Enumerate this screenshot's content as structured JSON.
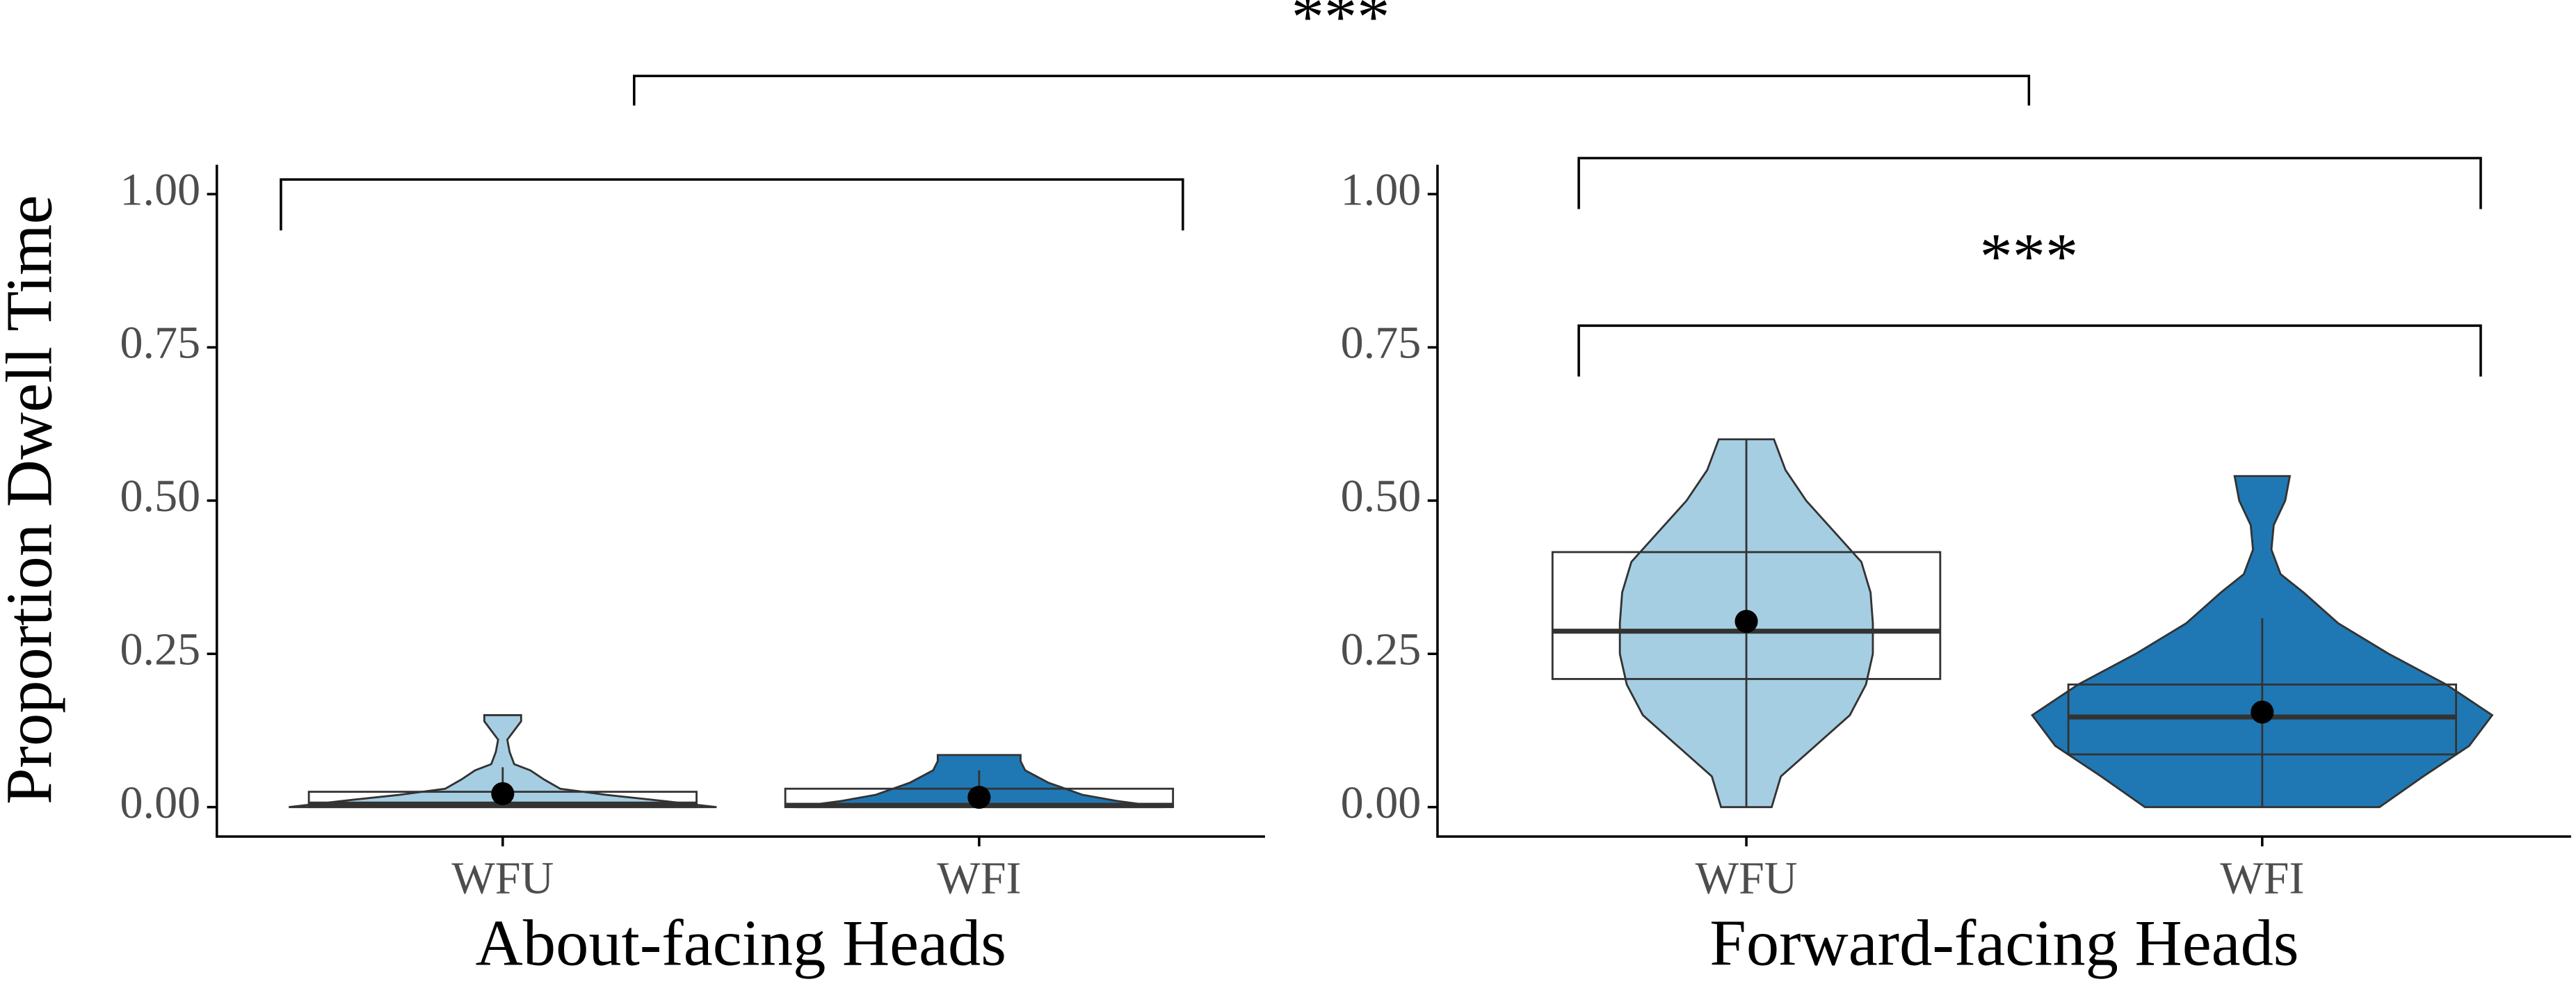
{
  "figure_annotation": "***",
  "y_axis_label": "Proportion Dwell Time",
  "chart_data": [
    {
      "type": "violin",
      "title": "About-facing Heads",
      "categories": [
        "WFU",
        "WFI"
      ],
      "colors": [
        "#a6cee3",
        "#1f78b4"
      ],
      "ylim": [
        -0.048,
        1.048
      ],
      "yticks": [
        {
          "value": 0,
          "label": "0.00"
        },
        {
          "value": 0.25,
          "label": "0.25"
        },
        {
          "value": 0.5,
          "label": "0.50"
        },
        {
          "value": 0.75,
          "label": "0.75"
        },
        {
          "value": 1,
          "label": "1.00"
        }
      ],
      "boxes": [
        {
          "q1": 0,
          "median": 0.005,
          "q3": 0.025,
          "whisker_low": 0,
          "whisker_high": 0.065,
          "mean": 0.022,
          "density": {
            "y": [
              0,
              0.01,
              0.02,
              0.03,
              0.045,
              0.06,
              0.07,
              0.09,
              0.11,
              0.125,
              0.14,
              0.15
            ],
            "d": [
              0.93,
              0.7,
              0.45,
              0.25,
              0.18,
              0.12,
              0.05,
              0.03,
              0.02,
              0.05,
              0.08,
              0.08
            ]
          }
        },
        {
          "q1": 0,
          "median": 0.003,
          "q3": 0.03,
          "whisker_low": 0,
          "whisker_high": 0.06,
          "mean": 0.016,
          "density": {
            "y": [
              0,
              0.01,
              0.02,
              0.04,
              0.06,
              0.075,
              0.085
            ],
            "d": [
              0.8,
              0.6,
              0.45,
              0.3,
              0.2,
              0.18,
              0.18
            ]
          }
        }
      ],
      "annotations": []
    },
    {
      "type": "violin",
      "title": "Forward-facing Heads",
      "categories": [
        "WFU",
        "WFI"
      ],
      "colors": [
        "#a6cee3",
        "#1f78b4"
      ],
      "ylim": [
        -0.048,
        1.048
      ],
      "yticks": [
        {
          "value": 0,
          "label": "0.00"
        },
        {
          "value": 0.25,
          "label": "0.25"
        },
        {
          "value": 0.5,
          "label": "0.50"
        },
        {
          "value": 0.75,
          "label": "0.75"
        },
        {
          "value": 1,
          "label": "1.00"
        }
      ],
      "boxes": [
        {
          "q1": 0.209,
          "median": 0.287,
          "q3": 0.416,
          "whisker_low": 0,
          "whisker_high": 0.6,
          "mean": 0.303,
          "density": {
            "y": [
              0,
              0.05,
              0.1,
              0.15,
              0.2,
              0.25,
              0.3,
              0.35,
              0.4,
              0.45,
              0.5,
              0.55,
              0.6
            ],
            "d": [
              0.11,
              0.15,
              0.3,
              0.45,
              0.52,
              0.55,
              0.55,
              0.54,
              0.5,
              0.38,
              0.26,
              0.17,
              0.12
            ]
          }
        },
        {
          "q1": 0.086,
          "median": 0.147,
          "q3": 0.2,
          "whisker_low": 0,
          "whisker_high": 0.308,
          "mean": 0.155,
          "density": {
            "y": [
              0,
              0.05,
              0.1,
              0.15,
              0.2,
              0.25,
              0.3,
              0.35,
              0.38,
              0.42,
              0.46,
              0.5,
              0.54
            ],
            "d": [
              0.51,
              0.7,
              0.9,
              1,
              0.8,
              0.55,
              0.33,
              0.18,
              0.08,
              0.04,
              0.05,
              0.1,
              0.12
            ]
          }
        }
      ],
      "annotations": [
        "***"
      ]
    }
  ]
}
